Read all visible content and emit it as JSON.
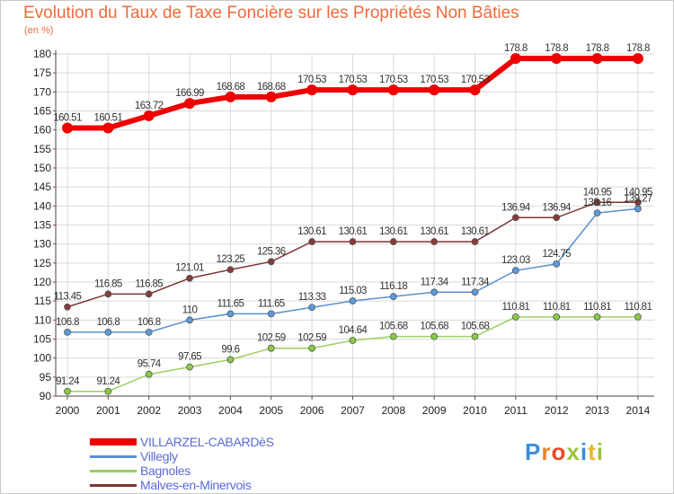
{
  "title": "Evolution du Taux de Taxe Foncière sur les Propriétés Non Bâties",
  "unit_label": "(en %)",
  "brand": {
    "letters": [
      {
        "ch": "P",
        "color": "#3a8fd8"
      },
      {
        "ch": "r",
        "color": "#e8862a"
      },
      {
        "ch": "o",
        "color": "#e84a2a"
      },
      {
        "ch": "x",
        "color": "#9ac43a"
      },
      {
        "ch": "i",
        "color": "#3a8fd8"
      },
      {
        "ch": "t",
        "color": "#e8b62a"
      },
      {
        "ch": "i",
        "color": "#9ac43a"
      }
    ]
  },
  "chart_data": {
    "type": "line",
    "x": [
      "2000",
      "2001",
      "2002",
      "2003",
      "2004",
      "2005",
      "2006",
      "2007",
      "2008",
      "2009",
      "2010",
      "2011",
      "2012",
      "2013",
      "2014"
    ],
    "ylim": [
      90,
      180
    ],
    "yticks": [
      90,
      95,
      100,
      105,
      110,
      115,
      120,
      125,
      130,
      135,
      140,
      145,
      150,
      155,
      160,
      165,
      170,
      175,
      180
    ],
    "grid": true,
    "legend_position": "bottom-left",
    "series": [
      {
        "name": "VILLARZEL-CABARDèS",
        "color": "#ee0000",
        "marker": "#ee0000",
        "width": 6,
        "values": [
          160.51,
          160.51,
          163.72,
          166.99,
          168.68,
          168.68,
          170.53,
          170.53,
          170.53,
          170.53,
          170.53,
          178.8,
          178.8,
          178.8,
          178.8
        ],
        "labels": [
          "160.51",
          "160.51",
          "163.72",
          "166.99",
          "168.68",
          "168.68",
          "170.53",
          "170.53",
          "170.53",
          "170.53",
          "170.53",
          "178.8",
          "178.8",
          "178.8",
          "178.8"
        ]
      },
      {
        "name": "Villegly",
        "color": "#5b8fd0",
        "marker": "#5b9ce0",
        "width": 1.5,
        "values": [
          106.8,
          106.8,
          106.8,
          110,
          111.65,
          111.65,
          113.33,
          115.03,
          116.18,
          117.34,
          117.34,
          123.03,
          124.75,
          138.16,
          139.27
        ],
        "labels": [
          "106.8",
          "106.8",
          "106.8",
          "110",
          "111.65",
          "111.65",
          "113.33",
          "115.03",
          "116.18",
          "117.34",
          "117.34",
          "123.03",
          "124.75",
          "138.16",
          "139.27"
        ]
      },
      {
        "name": "Bagnoles",
        "color": "#9ad060",
        "marker": "#88cc44",
        "width": 1.5,
        "values": [
          91.24,
          91.24,
          95.74,
          97.65,
          99.6,
          102.59,
          102.59,
          104.64,
          105.68,
          105.68,
          105.68,
          110.81,
          110.81,
          110.81,
          110.81
        ],
        "labels": [
          "91.24",
          "91.24",
          "95.74",
          "97.65",
          "99.6",
          "102.59",
          "102.59",
          "104.64",
          "105.68",
          "105.68",
          "105.68",
          "110.81",
          "110.81",
          "110.81",
          "110.81"
        ]
      },
      {
        "name": "Malves-en-Minervois",
        "color": "#7a3535",
        "marker": "#8a3a3a",
        "width": 1.5,
        "values": [
          113.45,
          116.85,
          116.85,
          121.01,
          123.25,
          125.36,
          130.61,
          130.61,
          130.61,
          130.61,
          130.61,
          136.94,
          136.94,
          140.95,
          140.95
        ],
        "labels": [
          "113.45",
          "116.85",
          "116.85",
          "121.01",
          "123.25",
          "125.36",
          "130.61",
          "130.61",
          "130.61",
          "130.61",
          "130.61",
          "136.94",
          "136.94",
          "140.95",
          "140.95"
        ]
      }
    ]
  }
}
